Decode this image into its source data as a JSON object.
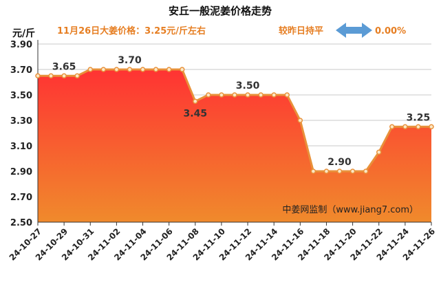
{
  "title": "安丘一般泥姜价格走势",
  "subtitle": "11月26日大姜价格：3.25元/斤左右",
  "change_label": "较昨日持平",
  "change_icon": "double-arrow-icon",
  "change_pct": "0.00%",
  "unit": "元/斤",
  "source": "中姜网监制（www.jiang7.com）",
  "colors": {
    "accent": "#e67e22",
    "area_top": "#ff3333",
    "area_bottom": "#f08a2c",
    "line": "#e8913a",
    "arrow": "#5b9bd5"
  },
  "chart_data": {
    "type": "area",
    "x": [
      "24-10-27",
      "24-10-28",
      "24-10-29",
      "24-10-30",
      "24-10-31",
      "24-11-01",
      "24-11-02",
      "24-11-03",
      "24-11-04",
      "24-11-05",
      "24-11-06",
      "24-11-07",
      "24-11-08",
      "24-11-09",
      "24-11-10",
      "24-11-11",
      "24-11-12",
      "24-11-13",
      "24-11-14",
      "24-11-15",
      "24-11-16",
      "24-11-17",
      "24-11-18",
      "24-11-19",
      "24-11-20",
      "24-11-21",
      "24-11-22",
      "24-11-23",
      "24-11-24",
      "24-11-25",
      "24-11-26"
    ],
    "values": [
      3.65,
      3.65,
      3.65,
      3.65,
      3.7,
      3.7,
      3.7,
      3.7,
      3.7,
      3.7,
      3.7,
      3.7,
      3.45,
      3.5,
      3.5,
      3.5,
      3.5,
      3.5,
      3.5,
      3.5,
      3.3,
      2.9,
      2.9,
      2.9,
      2.9,
      2.9,
      3.05,
      3.25,
      3.25,
      3.25,
      3.25
    ],
    "xtick_labels": [
      "24-10-27",
      "24-10-29",
      "24-10-31",
      "24-11-02",
      "24-11-04",
      "24-11-06",
      "24-11-08",
      "24-11-10",
      "24-11-12",
      "24-11-14",
      "24-11-16",
      "24-11-18",
      "24-11-20",
      "24-11-22",
      "24-11-24",
      "24-11-26"
    ],
    "ytick_labels": [
      "2.50",
      "2.70",
      "2.90",
      "3.10",
      "3.30",
      "3.50",
      "3.70",
      "3.90"
    ],
    "ylim": [
      2.5,
      3.9
    ],
    "annotations": [
      {
        "index": 2,
        "text": "3.65"
      },
      {
        "index": 7,
        "text": "3.70"
      },
      {
        "index": 12,
        "text": "3.45"
      },
      {
        "index": 16,
        "text": "3.50"
      },
      {
        "index": 23,
        "text": "2.90"
      },
      {
        "index": 29,
        "text": "3.25"
      }
    ],
    "grid": true
  }
}
